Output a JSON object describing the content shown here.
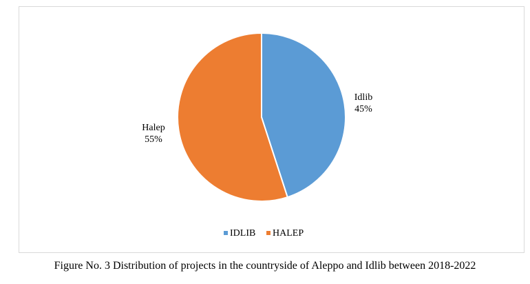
{
  "chart_data": {
    "type": "pie",
    "title": "",
    "categories": [
      "IDLIB",
      "HALEP"
    ],
    "values": [
      45,
      55
    ],
    "unit": "%",
    "data_labels": [
      {
        "name": "Idlib",
        "value": "45%"
      },
      {
        "name": "Halep",
        "value": "55%"
      }
    ],
    "colors": [
      "#5b9bd5",
      "#ed7d31"
    ],
    "legend": {
      "position": "bottom",
      "items": [
        "IDLIB",
        "HALEP"
      ]
    }
  },
  "caption": "Figure No. 3 Distribution of projects in the countryside of Aleppo and Idlib between 2018-2022"
}
